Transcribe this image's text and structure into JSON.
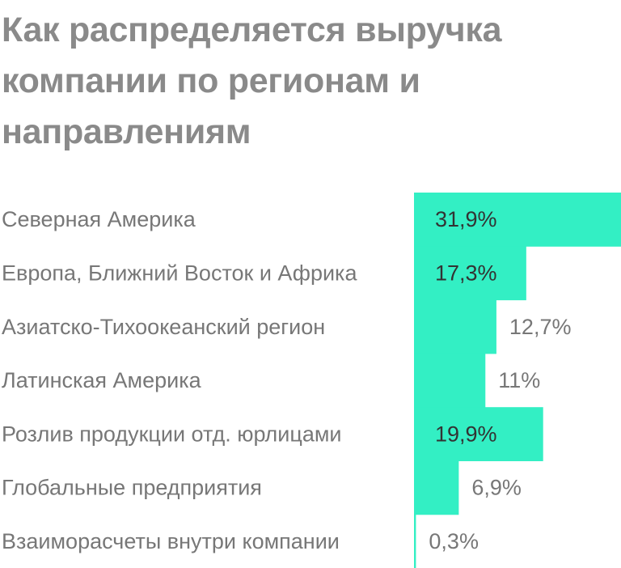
{
  "title": "Как распределяется выручка компании по регионам и направлениям",
  "chart_data": {
    "type": "bar",
    "orientation": "horizontal",
    "title": "Как распределяется выручка компании по регионам и направлениям",
    "categories": [
      "Северная Америка",
      "Европа, Ближний Восток и Африка",
      "Азиатско-Тихоокеанский регион",
      "Латинская Америка",
      "Розлив продукции отд. юрлицами",
      "Глобальные предприятия",
      "Взаиморасчеты внутри компании"
    ],
    "values": [
      31.9,
      17.3,
      12.7,
      11,
      19.9,
      6.9,
      0.3
    ],
    "value_labels": [
      "31,9%",
      "17,3%",
      "12,7%",
      "11%",
      "19,9%",
      "6,9%",
      "0,3%"
    ],
    "bar_color": "#33efc4",
    "value_label_color_inside": "#333333",
    "value_label_color_outside": "#777777",
    "grid": false,
    "legend": "none"
  }
}
